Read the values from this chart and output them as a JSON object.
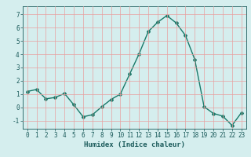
{
  "x": [
    0,
    1,
    2,
    3,
    4,
    5,
    6,
    7,
    8,
    9,
    10,
    11,
    12,
    13,
    14,
    15,
    16,
    17,
    18,
    19,
    20,
    21,
    22,
    23
  ],
  "y": [
    1.2,
    1.35,
    0.65,
    0.75,
    1.05,
    0.2,
    -0.7,
    -0.55,
    0.05,
    0.6,
    1.0,
    2.5,
    4.0,
    5.7,
    6.4,
    6.9,
    6.35,
    5.4,
    3.6,
    0.05,
    -0.45,
    -0.65,
    -1.35,
    -0.4
  ],
  "line_color": "#1a7a6a",
  "marker": "D",
  "markersize": 2,
  "linewidth": 1.0,
  "bg_color": "#d5eeee",
  "grid_color": "#e8a0a0",
  "xlabel": "Humidex (Indice chaleur)",
  "xlabel_fontsize": 6.5,
  "xlabel_color": "#1a5a5a",
  "tick_color": "#1a5a5a",
  "tick_fontsize": 5.5,
  "ylim": [
    -1.6,
    7.6
  ],
  "xlim": [
    -0.5,
    23.5
  ],
  "yticks": [
    -1,
    0,
    1,
    2,
    3,
    4,
    5,
    6,
    7
  ],
  "xticks": [
    0,
    1,
    2,
    3,
    4,
    5,
    6,
    7,
    8,
    9,
    10,
    11,
    12,
    13,
    14,
    15,
    16,
    17,
    18,
    19,
    20,
    21,
    22,
    23
  ]
}
